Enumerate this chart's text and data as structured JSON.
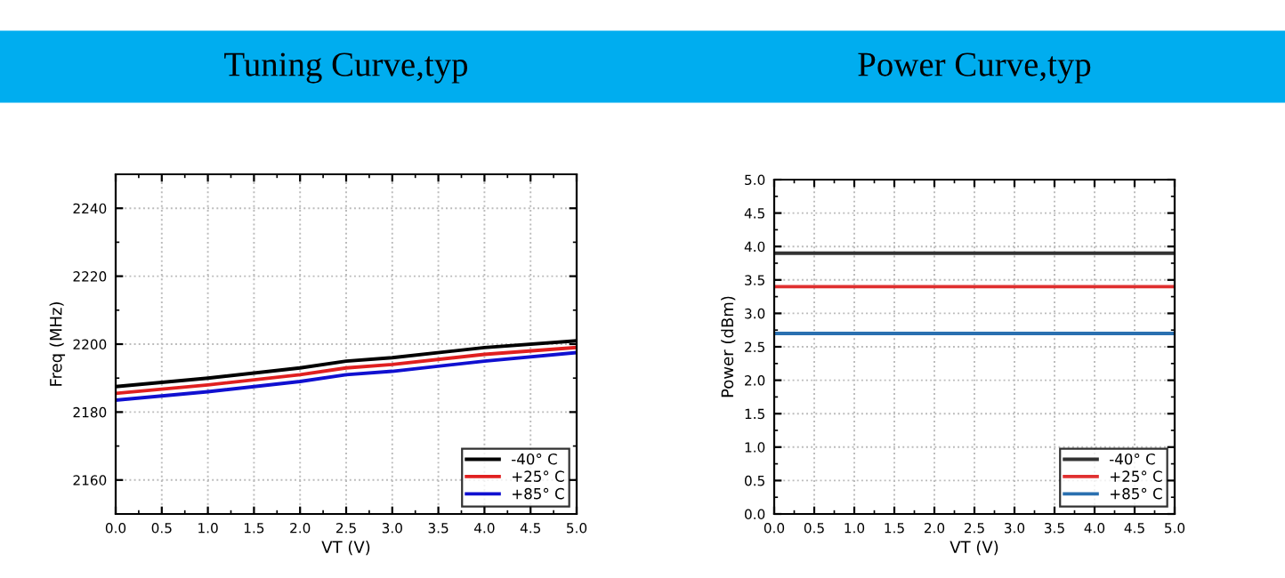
{
  "chart_data": [
    {
      "type": "line",
      "title": "Tuning Curve,typ",
      "xlabel": "VT (V)",
      "ylabel": "Freq (MHz)",
      "xlim": [
        0,
        5
      ],
      "ylim": [
        2150,
        2250
      ],
      "xticks": [
        {
          "value": 0,
          "label": "0.0"
        },
        {
          "value": 0.5,
          "label": "0.5"
        },
        {
          "value": 1,
          "label": "1.0"
        },
        {
          "value": 1.5,
          "label": "1.5"
        },
        {
          "value": 2,
          "label": "2.0"
        },
        {
          "value": 2.5,
          "label": "2.5"
        },
        {
          "value": 3,
          "label": "3.0"
        },
        {
          "value": 3.5,
          "label": "3.5"
        },
        {
          "value": 4,
          "label": "4.0"
        },
        {
          "value": 4.5,
          "label": "4.5"
        },
        {
          "value": 5,
          "label": "5.0"
        }
      ],
      "yticks": [
        2160,
        2180,
        2200,
        2220,
        2240
      ],
      "grid": true,
      "legend": "bottom right",
      "x": [
        0,
        1,
        2,
        2.5,
        3,
        4,
        5
      ],
      "series": [
        {
          "name": "-40° C",
          "color": "#000000",
          "values": [
            2187.5,
            2190,
            2193,
            2195,
            2196,
            2199,
            2201
          ]
        },
        {
          "name": "+25° C",
          "color": "#e02020",
          "values": [
            2185.5,
            2188,
            2191,
            2193,
            2194,
            2197,
            2199
          ]
        },
        {
          "name": "+85° C",
          "color": "#1010d0",
          "values": [
            2183.5,
            2186,
            2189,
            2191,
            2192,
            2195,
            2197.5
          ]
        }
      ]
    },
    {
      "type": "line",
      "title": "Power Curve,typ",
      "xlabel": "VT (V)",
      "ylabel": "Power (dBm)",
      "xlim": [
        0,
        5
      ],
      "ylim": [
        0,
        5
      ],
      "xticks": [
        {
          "value": 0,
          "label": "0.0"
        },
        {
          "value": 0.5,
          "label": "0.5"
        },
        {
          "value": 1,
          "label": "1.0"
        },
        {
          "value": 1.5,
          "label": "1.5"
        },
        {
          "value": 2,
          "label": "2.0"
        },
        {
          "value": 2.5,
          "label": "2.5"
        },
        {
          "value": 3,
          "label": "3.0"
        },
        {
          "value": 3.5,
          "label": "3.5"
        },
        {
          "value": 4,
          "label": "4.0"
        },
        {
          "value": 4.5,
          "label": "4.5"
        },
        {
          "value": 5,
          "label": "5.0"
        }
      ],
      "yticks": [
        {
          "value": 0,
          "label": "0.0"
        },
        {
          "value": 0.5,
          "label": "0.5"
        },
        {
          "value": 1,
          "label": "1.0"
        },
        {
          "value": 1.5,
          "label": "1.5"
        },
        {
          "value": 2,
          "label": "2.0"
        },
        {
          "value": 2.5,
          "label": "2.5"
        },
        {
          "value": 3,
          "label": "3.0"
        },
        {
          "value": 3.5,
          "label": "3.5"
        },
        {
          "value": 4,
          "label": "4.0"
        },
        {
          "value": 4.5,
          "label": "4.5"
        },
        {
          "value": 5,
          "label": "5.0"
        }
      ],
      "grid": true,
      "legend": "bottom right",
      "x": [
        0,
        5
      ],
      "series": [
        {
          "name": "-40° C",
          "color": "#333333",
          "values": [
            3.9,
            3.9
          ]
        },
        {
          "name": "+25° C",
          "color": "#e03030",
          "values": [
            3.4,
            3.4
          ]
        },
        {
          "name": "+85° C",
          "color": "#2a70b0",
          "values": [
            2.7,
            2.7
          ]
        }
      ]
    }
  ]
}
